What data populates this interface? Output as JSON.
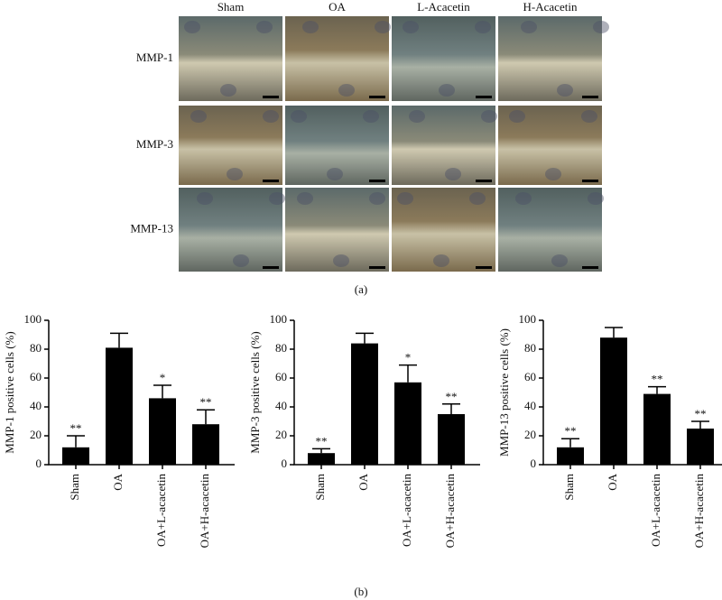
{
  "panel_a": {
    "columns": [
      "Sham",
      "OA",
      "L-Acacetin",
      "H-Acacetin"
    ],
    "rows": [
      "MMP-1",
      "MMP-3",
      "MMP-13"
    ],
    "label": "(a)"
  },
  "panel_b": {
    "label": "(b)"
  },
  "chart_data": [
    {
      "type": "bar",
      "ylabel": "MMP-1 positive cells (%)",
      "categories": [
        "Sham",
        "OA",
        "OA+L-acacetin",
        "OA+H-acacetin"
      ],
      "values": [
        12,
        81,
        46,
        28
      ],
      "errors": [
        8,
        10,
        9,
        10
      ],
      "annotations": [
        "**",
        null,
        "*",
        "**"
      ],
      "color": "#000000",
      "ylim": [
        0,
        100
      ],
      "yticks": [
        0,
        20,
        40,
        60,
        80,
        100
      ]
    },
    {
      "type": "bar",
      "ylabel": "MMP-3 positive cells (%)",
      "categories": [
        "Sham",
        "OA",
        "OA+L-acacetin",
        "OA+H-acacetin"
      ],
      "values": [
        8,
        84,
        57,
        35
      ],
      "errors": [
        3,
        7,
        12,
        7
      ],
      "annotations": [
        "**",
        null,
        "*",
        "**"
      ],
      "color": "#000000",
      "ylim": [
        0,
        100
      ],
      "yticks": [
        0,
        20,
        40,
        60,
        80,
        100
      ]
    },
    {
      "type": "bar",
      "ylabel": "MMP-13 positive cells (%)",
      "categories": [
        "Sham",
        "OA",
        "OA+L-acacetin",
        "OA+H-acacetin"
      ],
      "values": [
        12,
        88,
        49,
        25
      ],
      "errors": [
        6,
        7,
        5,
        5
      ],
      "annotations": [
        "**",
        null,
        "**",
        "**"
      ],
      "color": "#000000",
      "ylim": [
        0,
        100
      ],
      "yticks": [
        0,
        20,
        40,
        60,
        80,
        100
      ]
    }
  ]
}
